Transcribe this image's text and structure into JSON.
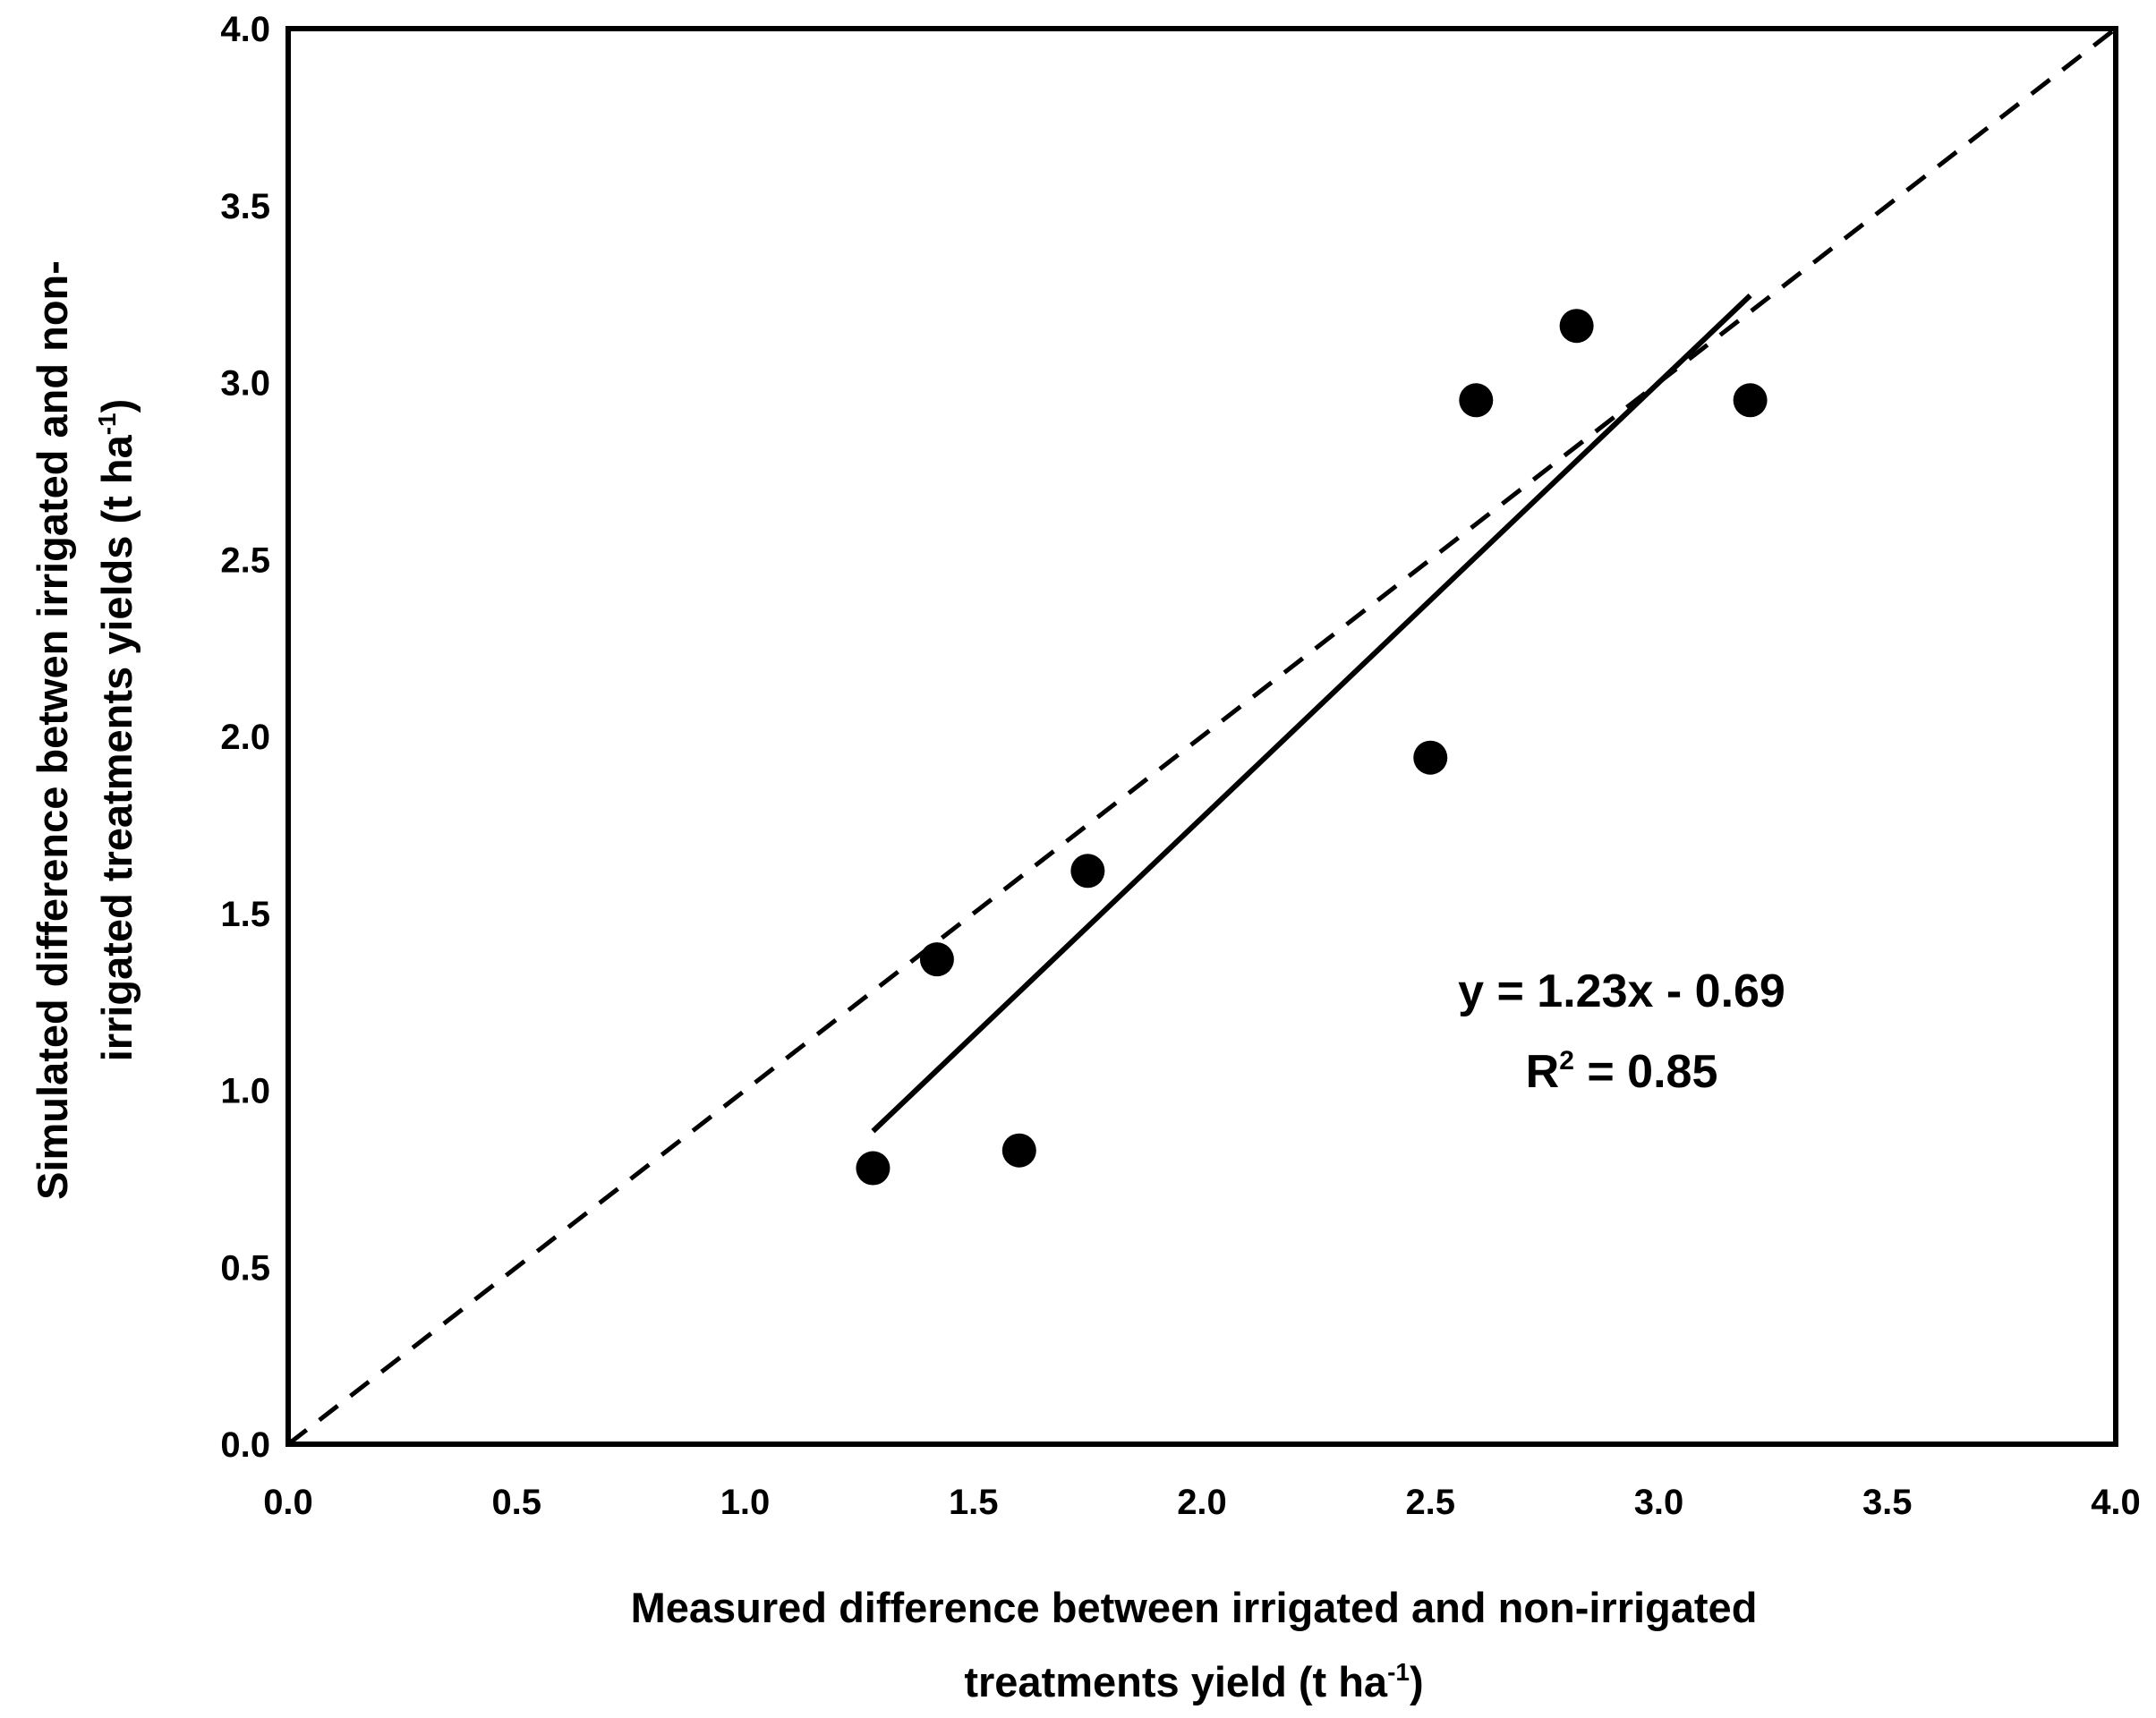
{
  "chart_data": {
    "type": "scatter",
    "title": "",
    "xlabel_lines": [
      "Measured difference between irrigated and non-irrigated",
      "treatments yield (t ha"
    ],
    "xlabel_superscript": "-1",
    "xlabel_suffix": ")",
    "ylabel_lines": [
      "Simulated difference betwen irrigated and non-",
      "irrigated treatments yields (t ha"
    ],
    "ylabel_superscript": "-1",
    "ylabel_suffix": ")",
    "xlim": [
      0,
      4
    ],
    "ylim": [
      0,
      4
    ],
    "xticks": [
      "0.0",
      "0.5",
      "1.0",
      "1.5",
      "2.0",
      "2.5",
      "3.0",
      "3.5",
      "4.0"
    ],
    "yticks": [
      "0.0",
      "0.5",
      "1.0",
      "1.5",
      "2.0",
      "2.5",
      "3.0",
      "3.5",
      "4.0"
    ],
    "grid": false,
    "points": [
      {
        "x": 1.28,
        "y": 0.78
      },
      {
        "x": 1.42,
        "y": 1.37
      },
      {
        "x": 1.6,
        "y": 0.83
      },
      {
        "x": 1.75,
        "y": 1.62
      },
      {
        "x": 2.5,
        "y": 1.94
      },
      {
        "x": 2.6,
        "y": 2.95
      },
      {
        "x": 2.82,
        "y": 3.16
      },
      {
        "x": 3.2,
        "y": 2.95
      }
    ],
    "one_to_one_line": {
      "x": [
        0,
        4
      ],
      "y": [
        0,
        4
      ],
      "style": "dashed"
    },
    "trendline": {
      "slope": 1.23,
      "intercept": -0.69,
      "x_range": [
        1.28,
        3.2
      ],
      "style": "solid"
    },
    "equation_text": "y = 1.23x - 0.69",
    "r2_label": "R",
    "r2_superscript": "2",
    "r2_value_text": " = 0.85"
  }
}
